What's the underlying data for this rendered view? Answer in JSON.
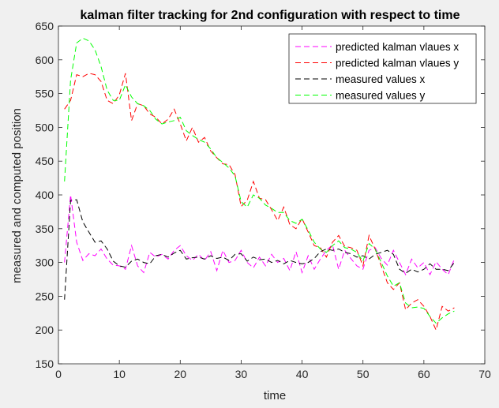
{
  "chart_data": {
    "type": "line",
    "title": "kalman filter tracking for 2nd configuration with respect to time",
    "xlabel": "time",
    "ylabel": "measured and computed position",
    "xlim": [
      0,
      70
    ],
    "ylim": [
      150,
      650
    ],
    "xticks": [
      "0",
      "10",
      "20",
      "30",
      "40",
      "50",
      "60",
      "70"
    ],
    "yticks": [
      "150",
      "200",
      "250",
      "300",
      "350",
      "400",
      "450",
      "500",
      "550",
      "600",
      "650"
    ],
    "grid": false,
    "legend_position": "top-right",
    "x": [
      1,
      2,
      3,
      4,
      5,
      6,
      7,
      8,
      9,
      10,
      11,
      12,
      13,
      14,
      15,
      16,
      17,
      18,
      19,
      20,
      21,
      22,
      23,
      24,
      25,
      26,
      27,
      28,
      29,
      30,
      31,
      32,
      33,
      34,
      35,
      36,
      37,
      38,
      39,
      40,
      41,
      42,
      43,
      44,
      45,
      46,
      47,
      48,
      49,
      50,
      51,
      52,
      53,
      54,
      55,
      56,
      57,
      58,
      59,
      60,
      61,
      62,
      63,
      64,
      65
    ],
    "series": [
      {
        "name": "predicted kalman vlaues x",
        "color": "#ff00ff",
        "values": [
          300,
          400,
          330,
          303,
          313,
          310,
          320,
          305,
          296,
          295,
          290,
          325,
          295,
          285,
          315,
          308,
          312,
          305,
          318,
          325,
          310,
          303,
          312,
          303,
          316,
          288,
          318,
          300,
          303,
          318,
          300,
          292,
          308,
          295,
          312,
          300,
          306,
          288,
          316,
          285,
          310,
          290,
          305,
          318,
          326,
          290,
          318,
          306,
          295,
          290,
          318,
          322,
          306,
          296,
          318,
          300,
          282,
          305,
          292,
          300,
          282,
          301,
          290,
          282,
          305
        ]
      },
      {
        "name": "predicted kalman vlaues y",
        "color": "#ff0000",
        "values": [
          527,
          540,
          578,
          575,
          580,
          578,
          568,
          540,
          535,
          548,
          580,
          510,
          535,
          532,
          520,
          515,
          505,
          512,
          527,
          505,
          480,
          500,
          478,
          485,
          465,
          455,
          446,
          445,
          430,
          383,
          392,
          420,
          395,
          393,
          378,
          362,
          382,
          356,
          350,
          365,
          345,
          325,
          322,
          308,
          330,
          340,
          324,
          322,
          318,
          295,
          340,
          320,
          295,
          270,
          260,
          270,
          230,
          240,
          245,
          235,
          220,
          200,
          235,
          228,
          233
        ]
      },
      {
        "name": "measured values x",
        "color": "#000000",
        "values": [
          245,
          392,
          393,
          360,
          345,
          330,
          332,
          320,
          302,
          295,
          293,
          302,
          305,
          300,
          298,
          310,
          312,
          308,
          314,
          318,
          305,
          307,
          308,
          305,
          310,
          306,
          308,
          303,
          312,
          313,
          302,
          308,
          304,
          305,
          300,
          303,
          298,
          303,
          300,
          298,
          300,
          306,
          316,
          320,
          318,
          320,
          315,
          313,
          308,
          310,
          305,
          312,
          315,
          318,
          312,
          290,
          284,
          290,
          286,
          290,
          298,
          290,
          290,
          288,
          300
        ]
      },
      {
        "name": "measured values y",
        "color": "#00ff00",
        "values": [
          420,
          570,
          625,
          632,
          628,
          615,
          590,
          555,
          540,
          540,
          563,
          545,
          535,
          532,
          525,
          512,
          505,
          508,
          510,
          515,
          495,
          488,
          482,
          478,
          468,
          455,
          448,
          440,
          428,
          390,
          382,
          400,
          395,
          385,
          380,
          374,
          374,
          362,
          358,
          364,
          348,
          330,
          320,
          315,
          325,
          332,
          322,
          320,
          315,
          302,
          328,
          320,
          300,
          280,
          265,
          270,
          240,
          233,
          234,
          232,
          220,
          210,
          218,
          224,
          228
        ]
      }
    ]
  }
}
